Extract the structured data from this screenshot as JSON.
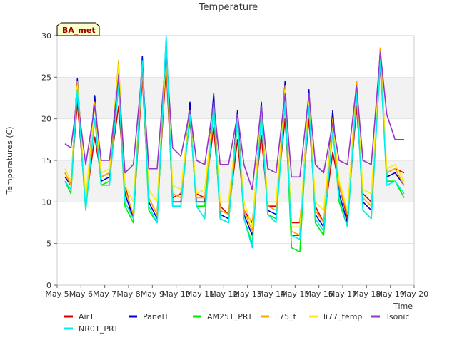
{
  "chart_data": {
    "type": "line",
    "title": "Temperature",
    "xlabel": "Time",
    "ylabel": "Temperatures (C)",
    "badge": "BA_met",
    "xlim": [
      5,
      20
    ],
    "ylim": [
      0,
      30
    ],
    "x_ticks": [
      {
        "value": 5,
        "label": "May 5"
      },
      {
        "value": 6,
        "label": "May 6"
      },
      {
        "value": 7,
        "label": "May 7"
      },
      {
        "value": 8,
        "label": "May 8"
      },
      {
        "value": 9,
        "label": "May 9"
      },
      {
        "value": 10,
        "label": "May 10"
      },
      {
        "value": 11,
        "label": "May 11"
      },
      {
        "value": 12,
        "label": "May 12"
      },
      {
        "value": 13,
        "label": "May 13"
      },
      {
        "value": 14,
        "label": "May 14"
      },
      {
        "value": 15,
        "label": "May 15"
      },
      {
        "value": 16,
        "label": "May 16"
      },
      {
        "value": 17,
        "label": "May 17"
      },
      {
        "value": 18,
        "label": "May 18"
      },
      {
        "value": 19,
        "label": "May 19"
      },
      {
        "value": 20,
        "label": "May 20"
      }
    ],
    "y_ticks": [
      0,
      5,
      10,
      15,
      20,
      25,
      30
    ],
    "y_bands": [
      [
        10,
        15
      ],
      [
        20,
        25
      ],
      [
        30,
        30
      ]
    ],
    "legend_position": "bottom",
    "series": [
      {
        "name": "AirT",
        "color": "#dd0000",
        "x": [
          5.33,
          5.58,
          5.85,
          6.2,
          6.58,
          6.85,
          7.2,
          7.58,
          7.85,
          8.2,
          8.58,
          8.85,
          9.2,
          9.58,
          9.85,
          10.2,
          10.58,
          10.85,
          11.2,
          11.58,
          11.85,
          12.2,
          12.58,
          12.85,
          13.2,
          13.58,
          13.85,
          14.2,
          14.58,
          14.85,
          15.2,
          15.58,
          15.85,
          16.2,
          16.58,
          16.85,
          17.2,
          17.58,
          17.85,
          18.2,
          18.58,
          18.85,
          19.2,
          19.58
        ],
        "y": [
          13.5,
          12.0,
          22.0,
          9.8,
          17.8,
          13.0,
          13.5,
          21.5,
          12.0,
          8.0,
          25.0,
          10.5,
          8.5,
          26.5,
          10.5,
          11.0,
          19.8,
          11.0,
          10.5,
          19.0,
          9.5,
          8.5,
          17.5,
          9.0,
          7.5,
          18.0,
          9.5,
          9.5,
          20.0,
          7.5,
          7.5,
          20.0,
          9.5,
          7.5,
          16.0,
          12.0,
          8.0,
          21.5,
          11.0,
          10.0,
          26.5,
          13.5,
          14.0,
          13.5
        ]
      },
      {
        "name": "PanelT",
        "color": "#0000cc",
        "x": [
          5.33,
          5.58,
          5.85,
          6.2,
          6.58,
          6.85,
          7.2,
          7.58,
          7.85,
          8.2,
          8.58,
          8.85,
          9.2,
          9.58,
          9.85,
          10.2,
          10.58,
          10.85,
          11.2,
          11.58,
          11.85,
          12.2,
          12.58,
          12.85,
          13.2,
          13.58,
          13.85,
          14.2,
          14.58,
          14.85,
          15.2,
          15.58,
          15.85,
          16.2,
          16.58,
          16.85,
          17.2,
          17.58,
          17.85,
          18.2,
          18.58,
          18.85,
          19.2,
          19.58
        ],
        "y": [
          13.0,
          12.0,
          24.8,
          9.5,
          22.8,
          12.5,
          13.0,
          26.0,
          11.0,
          8.0,
          27.5,
          10.0,
          8.0,
          29.5,
          10.0,
          10.0,
          22.0,
          10.0,
          10.0,
          23.0,
          8.5,
          8.0,
          21.0,
          8.5,
          6.0,
          22.0,
          9.0,
          8.5,
          24.5,
          6.0,
          6.0,
          23.5,
          8.5,
          7.0,
          21.0,
          11.0,
          7.5,
          24.5,
          10.0,
          9.0,
          28.5,
          13.0,
          13.5,
          12.0
        ]
      },
      {
        "name": "AM25T_PRT",
        "color": "#00ee00",
        "x": [
          5.33,
          5.58,
          5.85,
          6.2,
          6.58,
          6.85,
          7.2,
          7.58,
          7.85,
          8.2,
          8.58,
          8.85,
          9.2,
          9.58,
          9.85,
          10.2,
          10.58,
          10.85,
          11.2,
          11.58,
          11.85,
          12.2,
          12.58,
          12.85,
          13.2,
          13.58,
          13.85,
          14.2,
          14.58,
          14.85,
          15.2,
          15.58,
          15.85,
          16.2,
          16.58,
          16.85,
          17.2,
          17.58,
          17.85,
          18.2,
          18.58,
          18.85,
          19.2,
          19.58
        ],
        "y": [
          12.5,
          11.0,
          23.5,
          9.0,
          20.0,
          12.0,
          12.5,
          24.0,
          9.5,
          7.5,
          26.5,
          9.0,
          7.5,
          28.5,
          9.5,
          9.5,
          20.5,
          9.5,
          9.5,
          21.0,
          8.0,
          7.5,
          19.5,
          8.0,
          5.0,
          20.5,
          8.5,
          8.0,
          22.0,
          4.5,
          4.0,
          22.5,
          7.5,
          6.0,
          19.0,
          10.0,
          7.0,
          23.5,
          9.0,
          8.0,
          27.5,
          12.5,
          12.5,
          10.5
        ]
      },
      {
        "name": "li75_t",
        "color": "#ffa500",
        "x": [
          5.33,
          5.58,
          5.85,
          6.2,
          6.58,
          6.85,
          7.2,
          7.58,
          7.85,
          8.2,
          8.58,
          8.85,
          9.2,
          9.58,
          9.85,
          10.2,
          10.58,
          10.85,
          11.2,
          11.58,
          11.85,
          12.2,
          12.58,
          12.85,
          13.2,
          13.58,
          13.85,
          14.2,
          14.58,
          14.85,
          15.2,
          15.58,
          15.85,
          16.2,
          16.58,
          16.85,
          17.2,
          17.58,
          17.85,
          18.2,
          18.58,
          18.85,
          19.2,
          19.58
        ],
        "y": [
          13.5,
          12.0,
          24.5,
          10.0,
          22.0,
          13.0,
          13.5,
          27.0,
          11.5,
          8.5,
          26.0,
          10.5,
          8.5,
          28.0,
          11.0,
          10.5,
          21.0,
          10.5,
          10.5,
          22.0,
          9.0,
          8.5,
          20.0,
          9.0,
          6.5,
          21.5,
          9.5,
          9.0,
          24.0,
          6.5,
          6.0,
          23.0,
          9.0,
          7.5,
          20.0,
          12.0,
          8.5,
          24.5,
          10.5,
          9.5,
          28.5,
          13.5,
          14.0,
          12.0
        ]
      },
      {
        "name": "li77_temp",
        "color": "#ffee00",
        "x": [
          5.33,
          5.58,
          5.85,
          6.2,
          6.58,
          6.85,
          7.2,
          7.58,
          7.85,
          8.2,
          8.58,
          8.85,
          9.2,
          9.58,
          9.85,
          10.2,
          10.58,
          10.85,
          11.2,
          11.58,
          11.85,
          12.2,
          12.58,
          12.85,
          13.2,
          13.58,
          13.85,
          14.2,
          14.58,
          14.85,
          15.2,
          15.58,
          15.85,
          16.2,
          16.58,
          16.85,
          17.2,
          17.58,
          17.85,
          18.2,
          18.58,
          18.85,
          19.2,
          19.58
        ],
        "y": [
          14.0,
          12.5,
          24.0,
          10.5,
          21.5,
          13.5,
          14.0,
          26.5,
          12.0,
          10.0,
          26.0,
          11.5,
          10.0,
          28.0,
          12.0,
          11.5,
          21.0,
          11.0,
          11.5,
          21.5,
          10.0,
          10.0,
          19.5,
          10.0,
          7.0,
          21.0,
          10.0,
          10.0,
          23.5,
          7.0,
          7.0,
          22.5,
          10.0,
          9.0,
          19.5,
          12.5,
          9.0,
          23.5,
          11.5,
          11.0,
          27.5,
          14.0,
          14.5,
          12.5
        ]
      },
      {
        "name": "Tsonic",
        "color": "#9933cc",
        "x": [
          5.33,
          5.58,
          5.85,
          6.2,
          6.58,
          6.85,
          7.2,
          7.58,
          7.85,
          8.2,
          8.58,
          8.85,
          9.2,
          9.58,
          9.85,
          10.2,
          10.58,
          10.85,
          11.2,
          11.58,
          11.85,
          12.2,
          12.58,
          12.85,
          13.2,
          13.58,
          13.85,
          14.2,
          14.58,
          14.85,
          15.2,
          15.58,
          15.85,
          16.2,
          16.58,
          16.85,
          17.2,
          17.58,
          17.85,
          18.2,
          18.58,
          18.85,
          19.2,
          19.58
        ],
        "y": [
          17.0,
          16.5,
          22.5,
          14.5,
          21.5,
          15.0,
          15.0,
          25.0,
          13.5,
          14.5,
          26.0,
          14.0,
          14.0,
          28.0,
          16.5,
          15.5,
          21.0,
          15.0,
          14.5,
          22.0,
          14.5,
          14.5,
          20.5,
          14.5,
          11.5,
          21.5,
          14.0,
          13.5,
          23.0,
          13.0,
          13.0,
          23.0,
          14.5,
          13.5,
          19.5,
          15.0,
          14.5,
          24.0,
          15.0,
          14.5,
          28.0,
          20.5,
          17.5,
          17.5
        ]
      },
      {
        "name": "NR01_PRT",
        "color": "#00eeee",
        "x": [
          5.33,
          5.58,
          5.85,
          6.2,
          6.58,
          6.85,
          7.2,
          7.58,
          7.85,
          8.2,
          8.58,
          8.85,
          9.2,
          9.58,
          9.85,
          10.2,
          10.58,
          10.85,
          11.2,
          11.58,
          11.85,
          12.2,
          12.58,
          12.85,
          13.2,
          13.58,
          13.85,
          14.2,
          14.58,
          14.85,
          15.2,
          15.58,
          15.85,
          16.2,
          16.58,
          16.85,
          17.2,
          17.58,
          17.85,
          18.2,
          18.58,
          18.85,
          19.2,
          19.58
        ],
        "y": [
          12.5,
          11.5,
          23.5,
          9.0,
          20.0,
          12.0,
          12.0,
          24.0,
          10.0,
          8.0,
          27.0,
          9.5,
          7.5,
          30.0,
          9.5,
          9.5,
          20.5,
          9.5,
          8.0,
          21.5,
          8.0,
          7.5,
          20.0,
          8.0,
          4.5,
          20.5,
          8.5,
          7.5,
          22.0,
          6.0,
          5.5,
          21.5,
          8.0,
          6.5,
          18.5,
          10.5,
          7.0,
          23.0,
          9.0,
          8.0,
          27.0,
          12.0,
          12.5,
          11.0
        ]
      }
    ]
  }
}
